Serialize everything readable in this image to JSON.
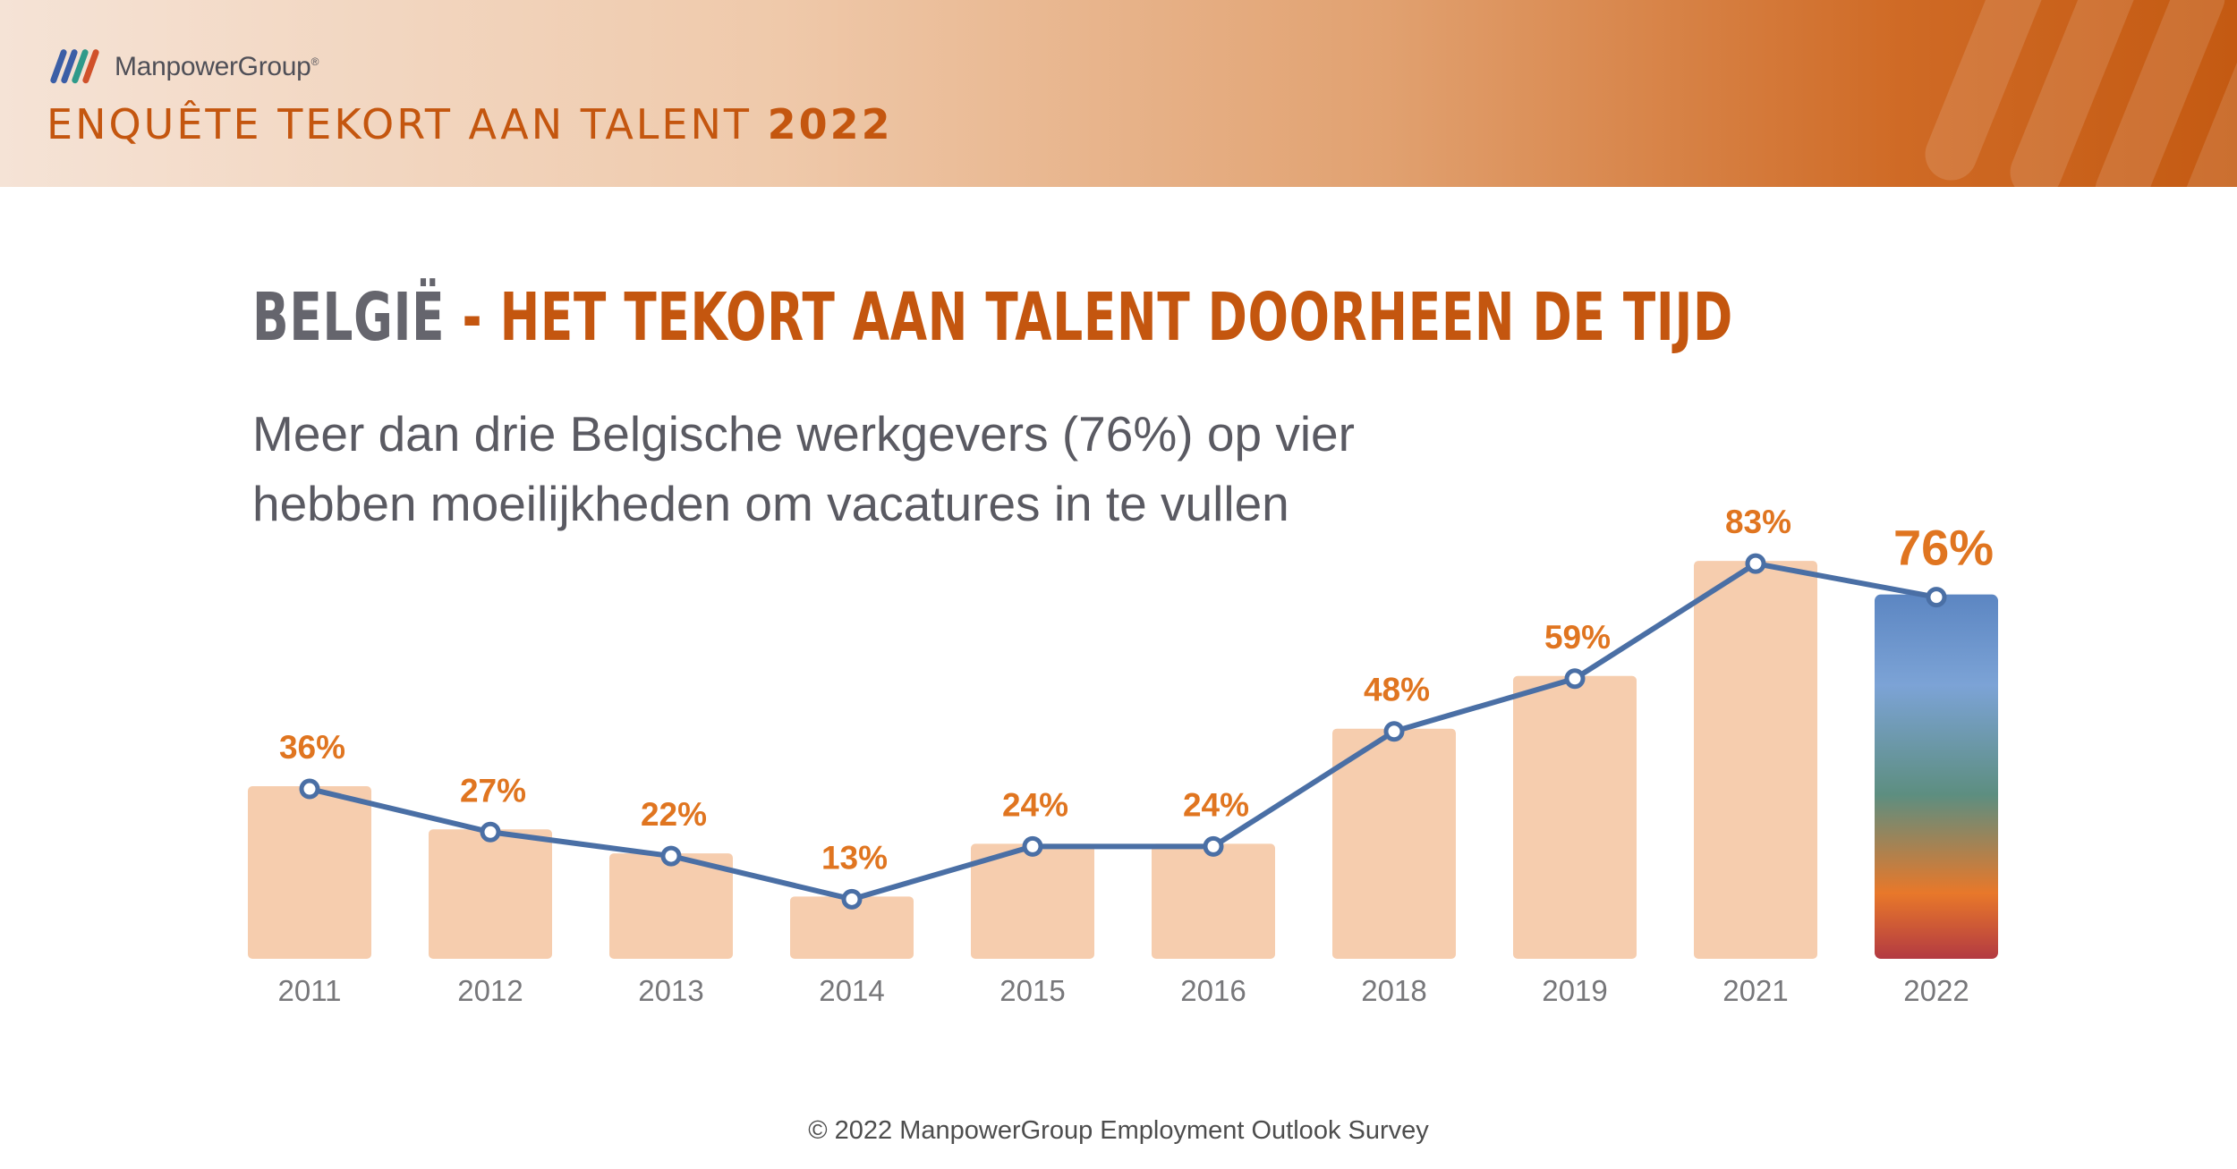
{
  "header": {
    "brand": "ManpowerGroup",
    "brand_mark": "®",
    "report_title": "ENQUÊTE TEKORT AAN TALENT",
    "report_year": "2022"
  },
  "headline": {
    "country": "BELGIË",
    "separator": "-",
    "topic": "HET TEKORT AAN TALENT DOORHEEN DE TIJD"
  },
  "subtitle": {
    "line1": "Meer dan drie Belgische werkgevers (76%) op vier",
    "line2": "hebben moeilijkheden om vacatures in te vullen"
  },
  "colors": {
    "bar": "#f6cdae",
    "line": "#4a6fa5",
    "label": "#e07520",
    "year_label": "#77777a",
    "accent": "#c4560f"
  },
  "chart_data": {
    "type": "bar",
    "categories": [
      "2011",
      "2012",
      "2013",
      "2014",
      "2015",
      "2016",
      "2018",
      "2019",
      "2021",
      "2022"
    ],
    "values": [
      36,
      27,
      22,
      13,
      24,
      24,
      48,
      59,
      83,
      76
    ],
    "value_labels": [
      "36%",
      "27%",
      "22%",
      "13%",
      "24%",
      "24%",
      "48%",
      "59%",
      "83%",
      "76%"
    ],
    "highlight_index": 9,
    "overlay": "line with markers at the same values",
    "ylim": [
      0,
      100
    ],
    "grid": false,
    "xlabel": "",
    "ylabel": ""
  },
  "footer": {
    "source": "© 2022 ManpowerGroup Employment Outlook Survey"
  }
}
